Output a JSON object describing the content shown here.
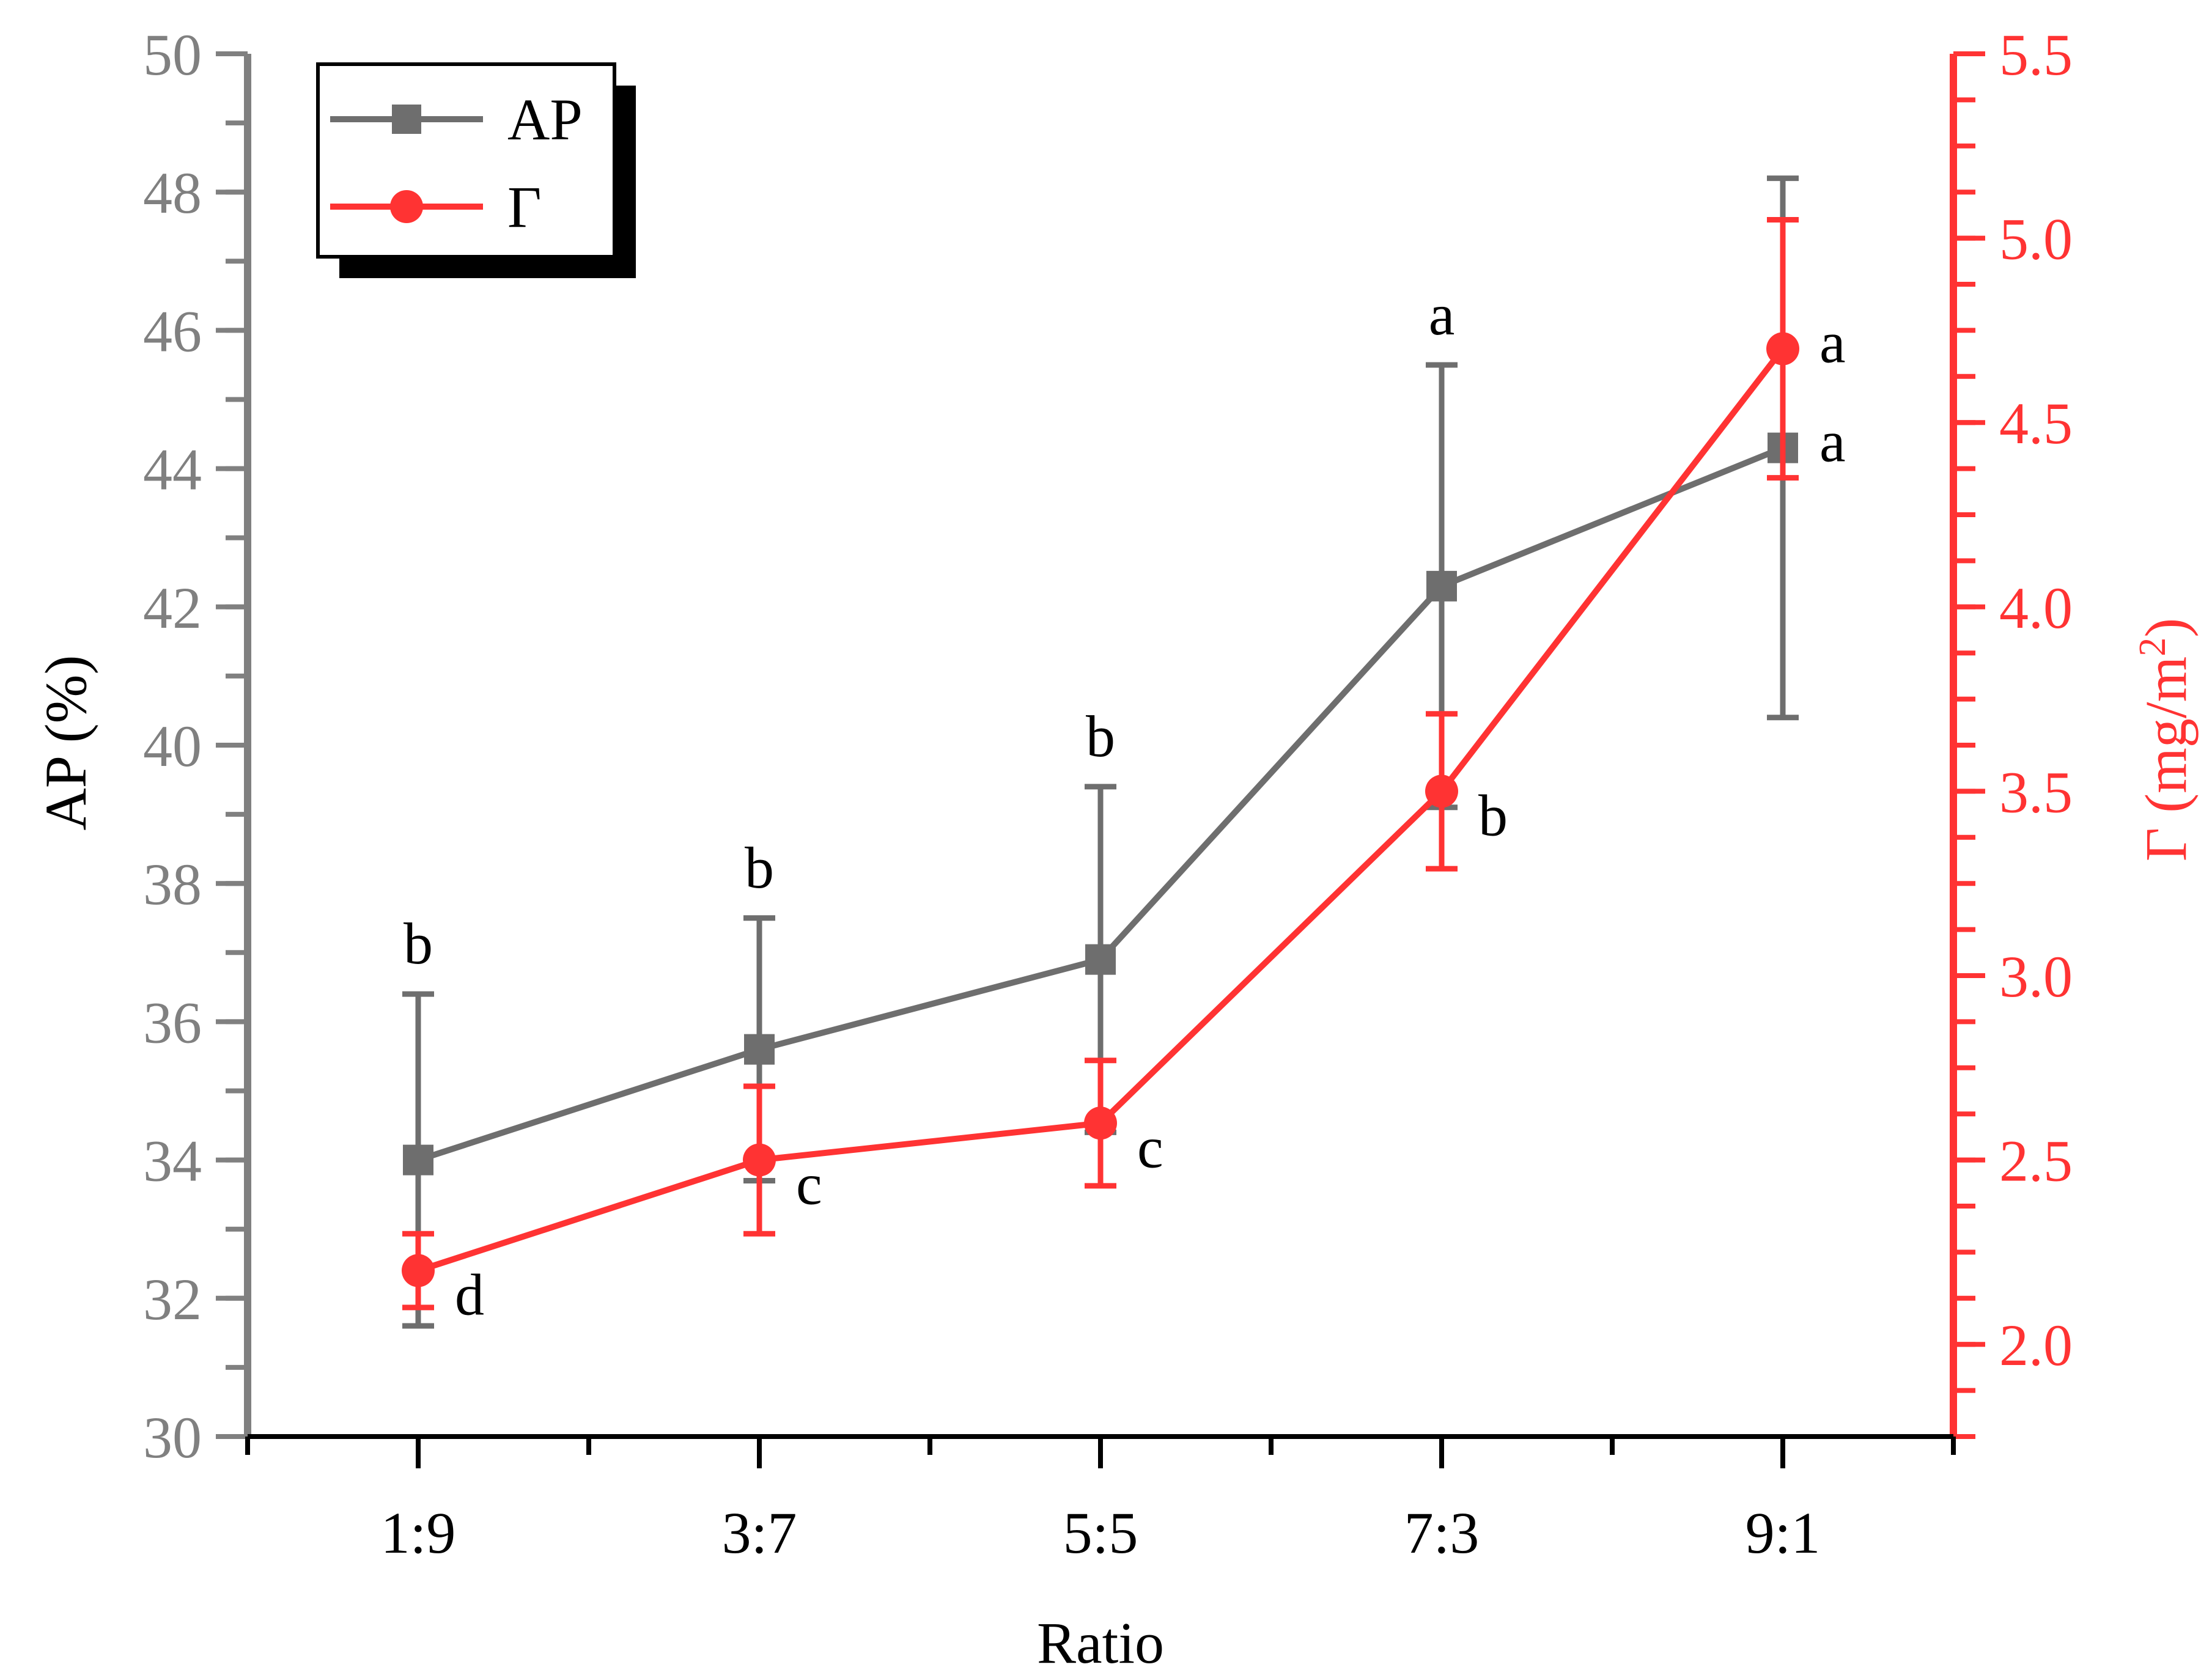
{
  "chart_data": {
    "type": "line",
    "categories": [
      "1:9",
      "3:7",
      "5:5",
      "7:3",
      "9:1"
    ],
    "xlabel": "Ratio",
    "y_left": {
      "label": "AP (%)",
      "min": 30,
      "max": 50,
      "ticks": [
        "30",
        "32",
        "34",
        "36",
        "38",
        "40",
        "42",
        "44",
        "46",
        "48",
        "50"
      ],
      "color": "#808080"
    },
    "y_right": {
      "label": "Γ (mg/m",
      "label_sup": "2",
      "label_end": ")",
      "min": 1.75,
      "max": 5.5,
      "ticks": [
        "2.0",
        "2.5",
        "3.0",
        "3.5",
        "4.0",
        "4.5",
        "5.0",
        "5.5"
      ],
      "color": "#ff3333"
    },
    "series": [
      {
        "name": "AP",
        "axis": "left",
        "color": "#6e6e6e",
        "marker": "square",
        "values": [
          34.0,
          35.6,
          36.9,
          42.3,
          44.3
        ],
        "errors": [
          2.4,
          1.9,
          2.5,
          3.2,
          3.9
        ],
        "letters": [
          "b",
          "b",
          "b",
          "a",
          "a"
        ]
      },
      {
        "name": "Γ",
        "axis": "right",
        "color": "#ff3333",
        "marker": "circle",
        "values": [
          2.2,
          2.5,
          2.6,
          3.5,
          4.7
        ],
        "errors": [
          0.1,
          0.2,
          0.17,
          0.21,
          0.35
        ],
        "letters": [
          "d",
          "c",
          "c",
          "b",
          "a"
        ]
      }
    ]
  }
}
